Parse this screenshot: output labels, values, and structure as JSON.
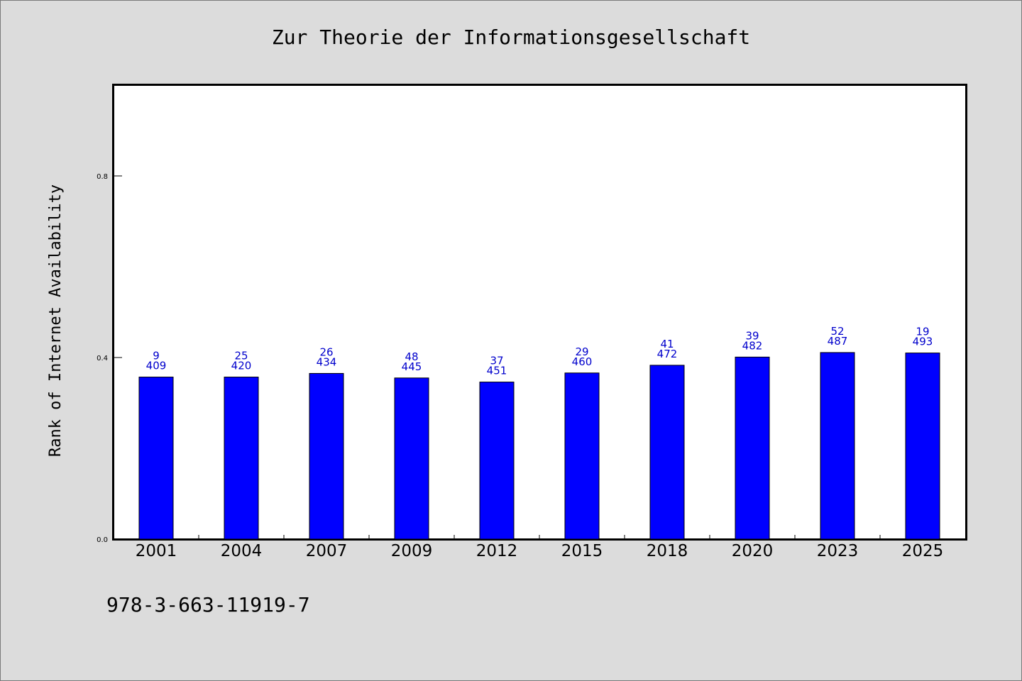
{
  "chart_data": {
    "type": "bar",
    "title": "Zur Theorie der Informationsgesellschaft",
    "ylabel": "Rank of Internet Availability",
    "xlabel": "",
    "ylim": [
      0,
      1.0
    ],
    "yticks": [
      "0.0",
      "0.4",
      "0.8"
    ],
    "categories": [
      "2001",
      "2004",
      "2007",
      "2009",
      "2012",
      "2015",
      "2018",
      "2020",
      "2023",
      "2025"
    ],
    "values": [
      0.357,
      0.357,
      0.365,
      0.355,
      0.346,
      0.366,
      0.383,
      0.401,
      0.411,
      0.41
    ],
    "annotations": [
      {
        "top": "9",
        "bottom": "409"
      },
      {
        "top": "25",
        "bottom": "420"
      },
      {
        "top": "26",
        "bottom": "434"
      },
      {
        "top": "48",
        "bottom": "445"
      },
      {
        "top": "37",
        "bottom": "451"
      },
      {
        "top": "29",
        "bottom": "460"
      },
      {
        "top": "41",
        "bottom": "472"
      },
      {
        "top": "39",
        "bottom": "482"
      },
      {
        "top": "52",
        "bottom": "487"
      },
      {
        "top": "19",
        "bottom": "493"
      }
    ],
    "bar_color": "#0000ff",
    "label_color": "#0000cc",
    "grid": false,
    "legend": "none"
  },
  "footer": {
    "isbn": "978-3-663-11919-7"
  }
}
